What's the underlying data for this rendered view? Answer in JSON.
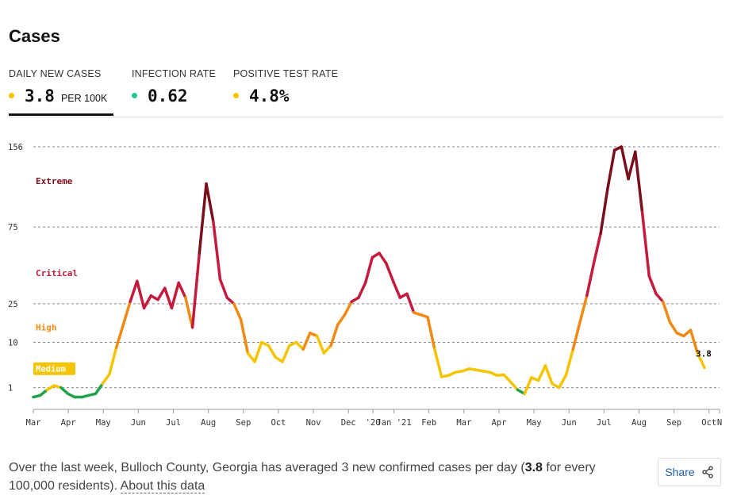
{
  "header": {
    "title": "Cases"
  },
  "metrics": [
    {
      "label": "DAILY NEW CASES",
      "value": "3.8",
      "unit": "PER 100K",
      "color": "#f5c400"
    },
    {
      "label": "INFECTION RATE",
      "value": "0.62",
      "color": "#1fc68a"
    },
    {
      "label": "POSITIVE TEST RATE",
      "value": "4.8%",
      "color": "#f5c400"
    }
  ],
  "chart_data": {
    "type": "line",
    "x_ticks": [
      "Mar",
      "Apr",
      "May",
      "Jun",
      "Jul",
      "Aug",
      "Sep",
      "Oct",
      "Nov",
      "Dec",
      "'20",
      "Jan '21",
      "Feb",
      "Mar",
      "Apr",
      "May",
      "Jun",
      "Jul",
      "Aug",
      "Sep",
      "Oct",
      "N"
    ],
    "y_ticks": [
      1,
      10,
      25,
      75,
      156
    ],
    "ylim": [
      0,
      156
    ],
    "y_scale": "sqrt",
    "grid": "dashed horizontal at y ticks",
    "risk_levels": [
      {
        "name": "Extreme",
        "color": "#7a0f1c"
      },
      {
        "name": "Critical",
        "color": "#c41a3d"
      },
      {
        "name": "High",
        "color": "#f08a14"
      },
      {
        "name": "Medium",
        "color": "#f5c400"
      }
    ],
    "series": [
      {
        "values": [
          0.3,
          0.4,
          0.8,
          1.2,
          1.0,
          0.5,
          0.3,
          0.3,
          0.4,
          0.5,
          1.4,
          2.7,
          8.5,
          16,
          26,
          37,
          23,
          29,
          27,
          33,
          23,
          36,
          28,
          15,
          55,
          115,
          80,
          38,
          28,
          25,
          18,
          7,
          5,
          10,
          9,
          6,
          5,
          9,
          10,
          8,
          13,
          12,
          7,
          9,
          16,
          20,
          26,
          28,
          36,
          52,
          55,
          48,
          37,
          28,
          30,
          21,
          20,
          19,
          8,
          2.3,
          2.5,
          3.0,
          3.2,
          3.6,
          3.4,
          3.2,
          3.0,
          2.5,
          2.6,
          1.6,
          0.8,
          0.5,
          2.2,
          1.8,
          4.2,
          1.4,
          1.0,
          2.6,
          8,
          17,
          29,
          48,
          70,
          110,
          152,
          156,
          120,
          150,
          88,
          40,
          30,
          26,
          17,
          13,
          12,
          14,
          7,
          3.8
        ]
      }
    ],
    "annotations": [
      "3.8"
    ]
  },
  "footer": {
    "text_pre": "Over the last week, Bulloch County, Georgia has averaged 3 new confirmed cases per day (",
    "highlight": "3.8",
    "text_post": " for every 100,000 residents). ",
    "about_link": "About this data"
  },
  "share": {
    "label": "Share"
  }
}
